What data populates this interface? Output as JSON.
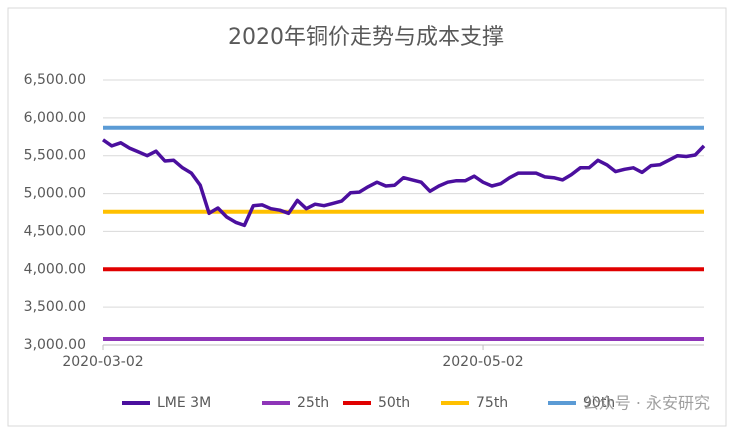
{
  "chart_data": {
    "type": "line",
    "title": "2020年铜价走势与成本支撑",
    "categories": [
      "2020-03-02",
      null,
      null,
      null,
      null,
      null,
      null,
      null,
      null,
      null,
      null,
      null,
      null,
      null,
      null,
      null,
      null,
      null,
      null,
      null,
      null,
      null,
      null,
      null,
      null,
      null,
      null,
      null,
      null,
      null,
      null,
      null,
      null,
      null,
      null,
      null,
      null,
      null,
      null,
      null,
      null,
      null,
      null,
      "2020-05-02",
      null,
      null,
      null,
      null,
      null,
      null,
      null,
      null,
      null,
      null,
      null,
      null,
      null,
      null,
      null,
      null,
      null,
      null,
      null,
      null,
      null,
      null,
      null,
      null,
      null
    ],
    "series": [
      {
        "name": "LME 3M",
        "color": "#4b0f9e",
        "values": [
          5710,
          5630,
          5670,
          5600,
          5550,
          5500,
          5560,
          5430,
          5440,
          5340,
          5270,
          5110,
          4740,
          4810,
          4690,
          4620,
          4580,
          4840,
          4850,
          4800,
          4780,
          4740,
          4910,
          4800,
          4860,
          4840,
          4870,
          4900,
          5010,
          5020,
          5090,
          5150,
          5100,
          5110,
          5210,
          5180,
          5150,
          5030,
          5100,
          5150,
          5170,
          5170,
          5230,
          5150,
          5100,
          5130,
          5210,
          5270,
          5270,
          5270,
          5220,
          5210,
          5180,
          5250,
          5340,
          5340,
          5440,
          5380,
          5290,
          5320,
          5340,
          5280,
          5370,
          5380,
          5440,
          5500,
          5490,
          5510,
          5630
        ]
      }
    ],
    "hlines": [
      {
        "name": "25th",
        "color": "#8e35b8",
        "value": 3080
      },
      {
        "name": "50th",
        "color": "#e00000",
        "value": 4000
      },
      {
        "name": "75th",
        "color": "#ffc000",
        "value": 4760
      },
      {
        "name": "90th",
        "color": "#5b9bd5",
        "value": 5870
      }
    ],
    "ylim": [
      3000,
      6500
    ],
    "yticks": [
      {
        "value": 3000,
        "label": "3,000.00"
      },
      {
        "value": 3500,
        "label": "3,500.00"
      },
      {
        "value": 4000,
        "label": "4,000.00"
      },
      {
        "value": 4500,
        "label": "4,500.00"
      },
      {
        "value": 5000,
        "label": "5,000.00"
      },
      {
        "value": 5500,
        "label": "5,500.00"
      },
      {
        "value": 6000,
        "label": "6,000.00"
      },
      {
        "value": 6500,
        "label": "6,500.00"
      }
    ],
    "grid": true,
    "legend": "bottom",
    "watermark": "公众号 · 永安研究"
  }
}
